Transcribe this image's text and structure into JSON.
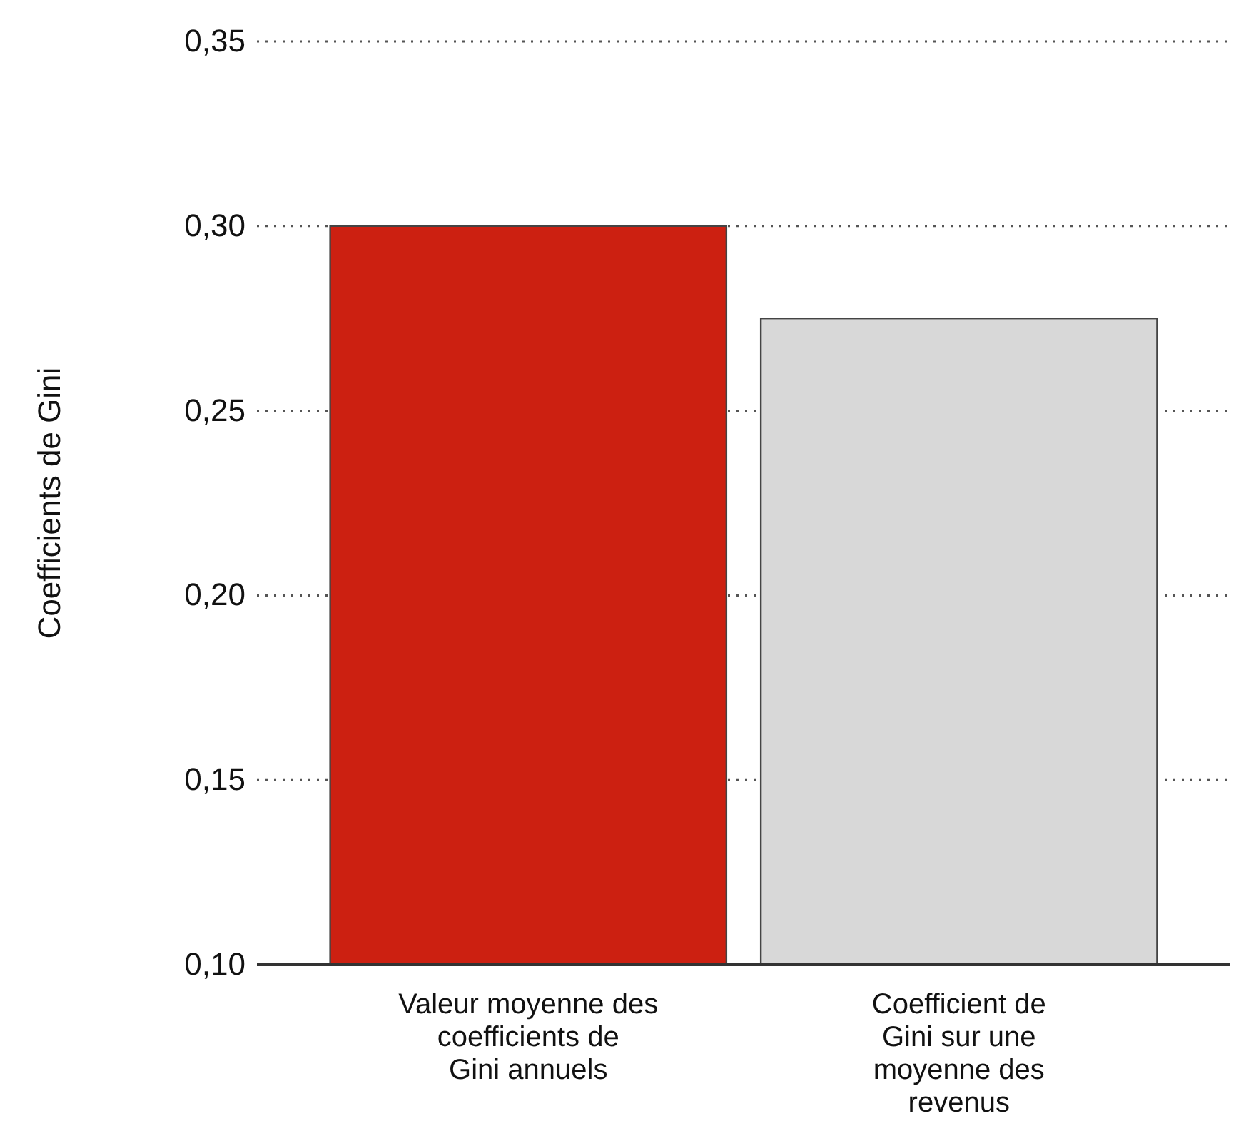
{
  "chart_data": {
    "type": "bar",
    "ylabel": "Coefficients de Gini",
    "categories": [
      "Valeur moyenne des coefficients de Gini annuels",
      "Coefficient de Gini sur une moyenne des revenus"
    ],
    "values": [
      0.3,
      0.275
    ],
    "colors": [
      "#cc2011",
      "#d8d8d8"
    ],
    "ylim": [
      0.1,
      0.35
    ],
    "yticks": [
      {
        "value": 0.1,
        "label": "0,10"
      },
      {
        "value": 0.15,
        "label": "0,15"
      },
      {
        "value": 0.2,
        "label": "0,20"
      },
      {
        "value": 0.25,
        "label": "0,25"
      },
      {
        "value": 0.3,
        "label": "0,30"
      },
      {
        "value": 0.35,
        "label": "0,35"
      }
    ],
    "grid": "y"
  }
}
